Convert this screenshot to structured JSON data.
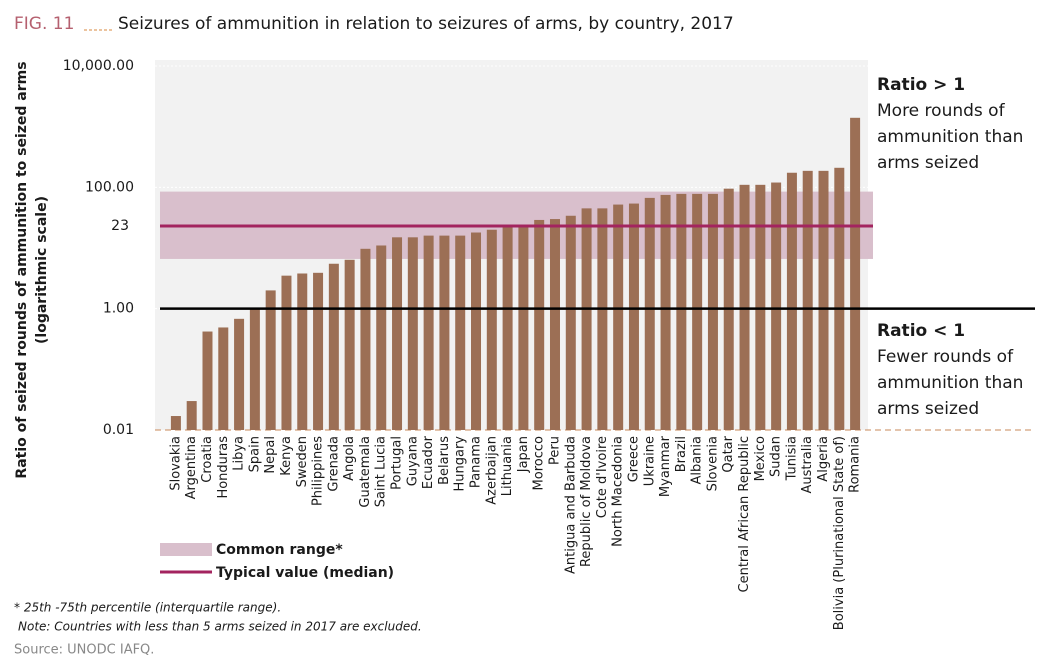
{
  "chart_data": {
    "type": "bar",
    "fig_label": "FIG. 11",
    "title": "Seizures of ammunition in relation to seizures of arms, by country,",
    "year": "2017",
    "y_label": "Ratio of seized rounds of ammunition to seized arms",
    "y_label_sub": "(logarithmic scale)",
    "log_scale": true,
    "categories": [
      "Slovakia",
      "Argentina",
      "Croatia",
      "Honduras",
      "Libya",
      "Spain",
      "Nepal",
      "Kenya",
      "Sweden",
      "Philippines",
      "Grenada",
      "Angola",
      "Guatemala",
      "Saint Lucia",
      "Portugal",
      "Guyana",
      "Ecuador",
      "Belarus",
      "Hungary",
      "Panama",
      "Azerbaijan",
      "Lithuania",
      "Japan",
      "Morocco",
      "Peru",
      "Antigua and Barbuda",
      "Republic of Moldova",
      "Cote d'Ivoire",
      "North Macedonia",
      "Greece",
      "Ukraine",
      "Myanmar",
      "Brazil",
      "Albania",
      "Slovenia",
      "Qatar",
      "Central African Republic",
      "Mexico",
      "Sudan",
      "Tunisia",
      "Australia",
      "Algeria",
      "Bolivia (Plurinational State of)",
      "Romania"
    ],
    "values": [
      0.017,
      0.03,
      0.42,
      0.49,
      0.68,
      1.0,
      2.0,
      3.5,
      3.8,
      3.9,
      5.5,
      6.4,
      9.7,
      11,
      15,
      15,
      16,
      16,
      16,
      18,
      20,
      23,
      23,
      29,
      30,
      34,
      45,
      45,
      52,
      54,
      67,
      75,
      78,
      78,
      78,
      95,
      110,
      110,
      120,
      174,
      187,
      187,
      210,
      1400
    ],
    "color": "#9c6f55",
    "ylim": [
      0.01,
      10000
    ],
    "yticks": [
      0.01,
      {
        "value": 1,
        "label": "1.00"
      },
      {
        "value": 100,
        "label": "100.00"
      },
      {
        "value": 10000,
        "label": "10,000.00"
      }
    ],
    "reference_line": 1,
    "common_range": [
      6.6,
      85
    ],
    "common_range_color": "#d9bfcc",
    "median": 23,
    "median_color": "#a3245f",
    "legend": {
      "common_range": "Common range*",
      "median": "Typical value (median)"
    },
    "annotation_top": {
      "title": "Ratio > 1",
      "lines": [
        "More rounds of",
        "ammunition than",
        "arms seized"
      ]
    },
    "annotation_bottom": {
      "title": "Ratio < 1",
      "lines": [
        "Fewer rounds of",
        "ammunition than",
        "arms seized"
      ]
    },
    "footnote": "* 25th -75th percentile (interquartile range).",
    "note": "Note: Countries with less than 5 arms seized in 2017 are excluded.",
    "source": "Source: UNODC IAFQ."
  }
}
